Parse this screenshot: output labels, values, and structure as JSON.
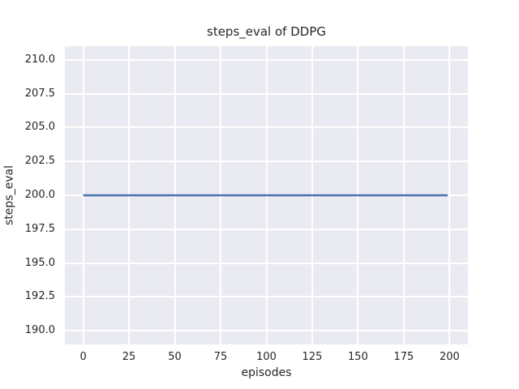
{
  "chart_data": {
    "type": "line",
    "title": "steps_eval of DDPG",
    "xlabel": "episodes",
    "ylabel": "steps_eval",
    "x_ticks": [
      0,
      25,
      50,
      75,
      100,
      125,
      150,
      175,
      200
    ],
    "x_tick_labels": [
      "0",
      "25",
      "50",
      "75",
      "100",
      "125",
      "150",
      "175",
      "200"
    ],
    "y_ticks": [
      190.0,
      192.5,
      195.0,
      197.5,
      200.0,
      202.5,
      205.0,
      207.5,
      210.0
    ],
    "y_tick_labels": [
      "190.0",
      "192.5",
      "195.0",
      "197.5",
      "200.0",
      "202.5",
      "205.0",
      "207.5",
      "210.0"
    ],
    "xlim": [
      -10,
      210
    ],
    "ylim": [
      189,
      211
    ],
    "grid": true,
    "legend_position": "none",
    "style": "seaborn-darkgrid",
    "series": [
      {
        "name": "DDPG steps_eval",
        "x": [
          0,
          199
        ],
        "y": [
          200,
          200
        ]
      }
    ],
    "colors": {
      "figure_background": "#FFFFFF",
      "plot_background": "#EAEAF2",
      "gridline": "#FFFFFF",
      "line": "#4C72B0",
      "text": "#262626"
    }
  }
}
